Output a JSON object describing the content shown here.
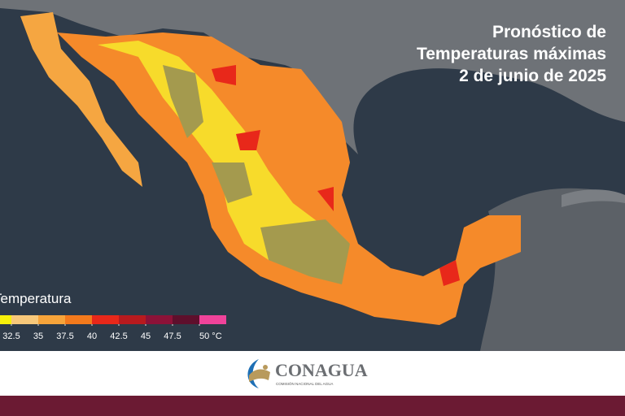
{
  "title_lines": [
    "Pronóstico de",
    "Temperaturas máximas",
    "2 de junio de 2025"
  ],
  "legend": {
    "title": "Temperatura",
    "colors": [
      "#f7f00a",
      "#f7c87a",
      "#f7a43a",
      "#f47a1c",
      "#e8281a",
      "#b81a1e",
      "#8c1238",
      "#5e0f2c",
      "#f0439a"
    ],
    "ticks": [
      32.5,
      35,
      37.5,
      40,
      42.5,
      45,
      47.5,
      {
        "value": 50,
        "label": "50 °C"
      }
    ]
  },
  "footer": {
    "brand": "CONAGUA",
    "subtitle": "COMISIÓN NACIONAL DEL AGUA"
  }
}
